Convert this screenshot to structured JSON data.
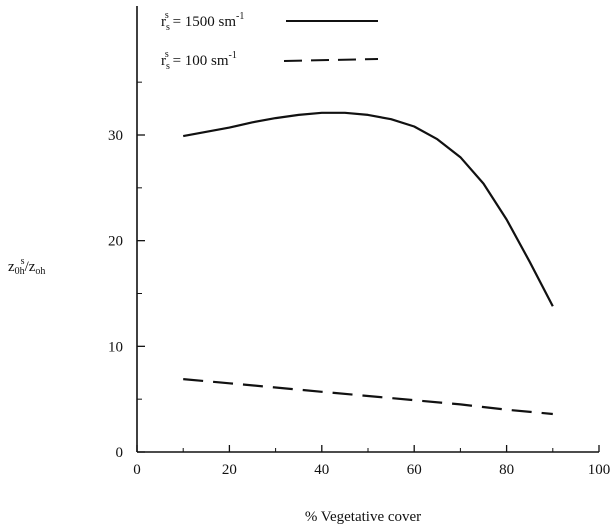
{
  "chart_data": {
    "type": "line",
    "xlabel": "% Vegetative cover",
    "ylabel": {
      "part1": "z",
      "part1_sub": "0h",
      "part1_sup": "s",
      "slash": "/",
      "part2": "z",
      "part2_sub": "oh"
    },
    "xlim": [
      0,
      100
    ],
    "ylim": [
      0,
      40
    ],
    "x_ticks": [
      0,
      20,
      40,
      60,
      80,
      100
    ],
    "y_ticks": [
      0,
      10,
      20,
      30
    ],
    "x_minor_ticks": [
      10,
      30,
      50,
      70,
      90
    ],
    "y_minor_ticks": [
      5,
      15,
      25,
      35
    ],
    "grid": false,
    "legend_position": "top-left",
    "series": [
      {
        "legend": {
          "base": "r",
          "sub": "s",
          "sup": "s",
          "rest": " = 1500 sm",
          "unit_sup": "-1"
        },
        "line_style": "solid",
        "x": [
          10,
          15,
          20,
          25,
          30,
          35,
          40,
          45,
          50,
          55,
          60,
          65,
          70,
          75,
          80,
          85,
          90
        ],
        "y": [
          29.9,
          30.3,
          30.7,
          31.2,
          31.6,
          31.9,
          32.1,
          32.1,
          31.9,
          31.5,
          30.8,
          29.6,
          27.9,
          25.4,
          22.0,
          18.0,
          13.8
        ]
      },
      {
        "legend": {
          "base": "r",
          "sub": "s",
          "sup": "s",
          "rest": " = 100 sm",
          "unit_sup": "-1"
        },
        "line_style": "dashed",
        "x": [
          10,
          20,
          30,
          40,
          50,
          60,
          70,
          80,
          90
        ],
        "y": [
          6.9,
          6.5,
          6.1,
          5.7,
          5.3,
          4.9,
          4.5,
          4.0,
          3.6
        ]
      }
    ]
  }
}
